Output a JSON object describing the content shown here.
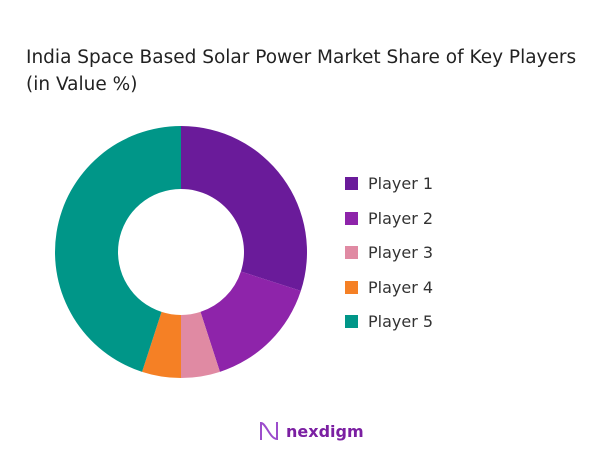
{
  "chart_data": {
    "type": "pie",
    "donut": true,
    "title": "India Space Based Solar Power Market Share of Key Players (in Value %)",
    "categories": [
      "Player 1",
      "Player 2",
      "Player 3",
      "Player 4",
      "Player 5"
    ],
    "values": [
      30,
      15,
      5,
      5,
      45
    ],
    "colors": [
      "#6a1b9a",
      "#8e24aa",
      "#e08aa3",
      "#f58025",
      "#009688"
    ],
    "legend": "right"
  },
  "logo": {
    "text": "nexdigm"
  }
}
